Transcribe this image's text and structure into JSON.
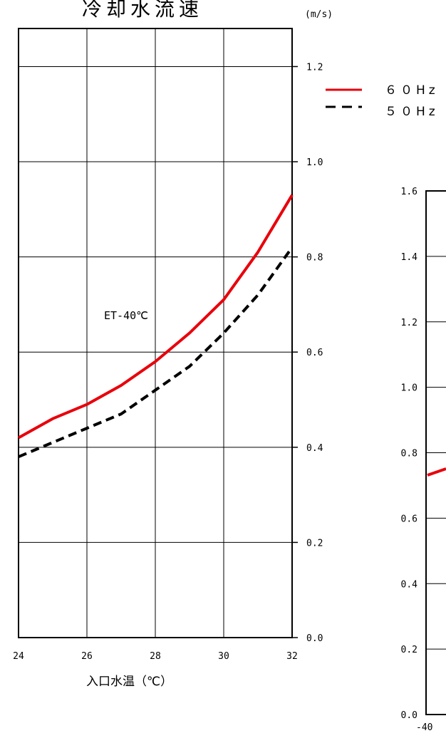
{
  "chart_data": [
    {
      "type": "line",
      "title": "冷却水流速",
      "unit": "(m/s)",
      "xlabel": "入口水温（℃）",
      "ylabel": "",
      "annotation": "ET-40℃",
      "x_ticks": [
        "24",
        "26",
        "28",
        "30",
        "32"
      ],
      "y_ticks": [
        "0.0",
        "0.2",
        "0.4",
        "0.6",
        "0.8",
        "1.0",
        "1.2"
      ],
      "xlim": [
        24,
        32
      ],
      "ylim": [
        0,
        1.28
      ],
      "grid": true,
      "series": [
        {
          "name": "６０Hz",
          "color": "#e8000b",
          "style": "solid",
          "x": [
            24,
            25,
            26,
            27,
            28,
            29,
            30,
            31,
            32
          ],
          "y": [
            0.42,
            0.46,
            0.49,
            0.53,
            0.58,
            0.64,
            0.71,
            0.81,
            0.93
          ]
        },
        {
          "name": "５０Hz",
          "color": "#000000",
          "style": "dashed",
          "x": [
            24,
            25,
            26,
            27,
            28,
            29,
            30,
            31,
            32
          ],
          "y": [
            0.38,
            0.41,
            0.44,
            0.47,
            0.52,
            0.57,
            0.64,
            0.72,
            0.82
          ]
        }
      ]
    },
    {
      "type": "line",
      "title": "",
      "y_ticks": [
        "0.0",
        "0.2",
        "0.4",
        "0.6",
        "0.8",
        "1.0",
        "1.2",
        "1.4",
        "1.6"
      ],
      "x_ticks": [
        "-40"
      ],
      "ylim": [
        0,
        1.6
      ],
      "grid": false,
      "partial": "cropped at right edge",
      "series": [
        {
          "color": "#e8000b",
          "style": "solid",
          "x": [
            -40
          ],
          "y": [
            0.7
          ]
        }
      ]
    }
  ]
}
